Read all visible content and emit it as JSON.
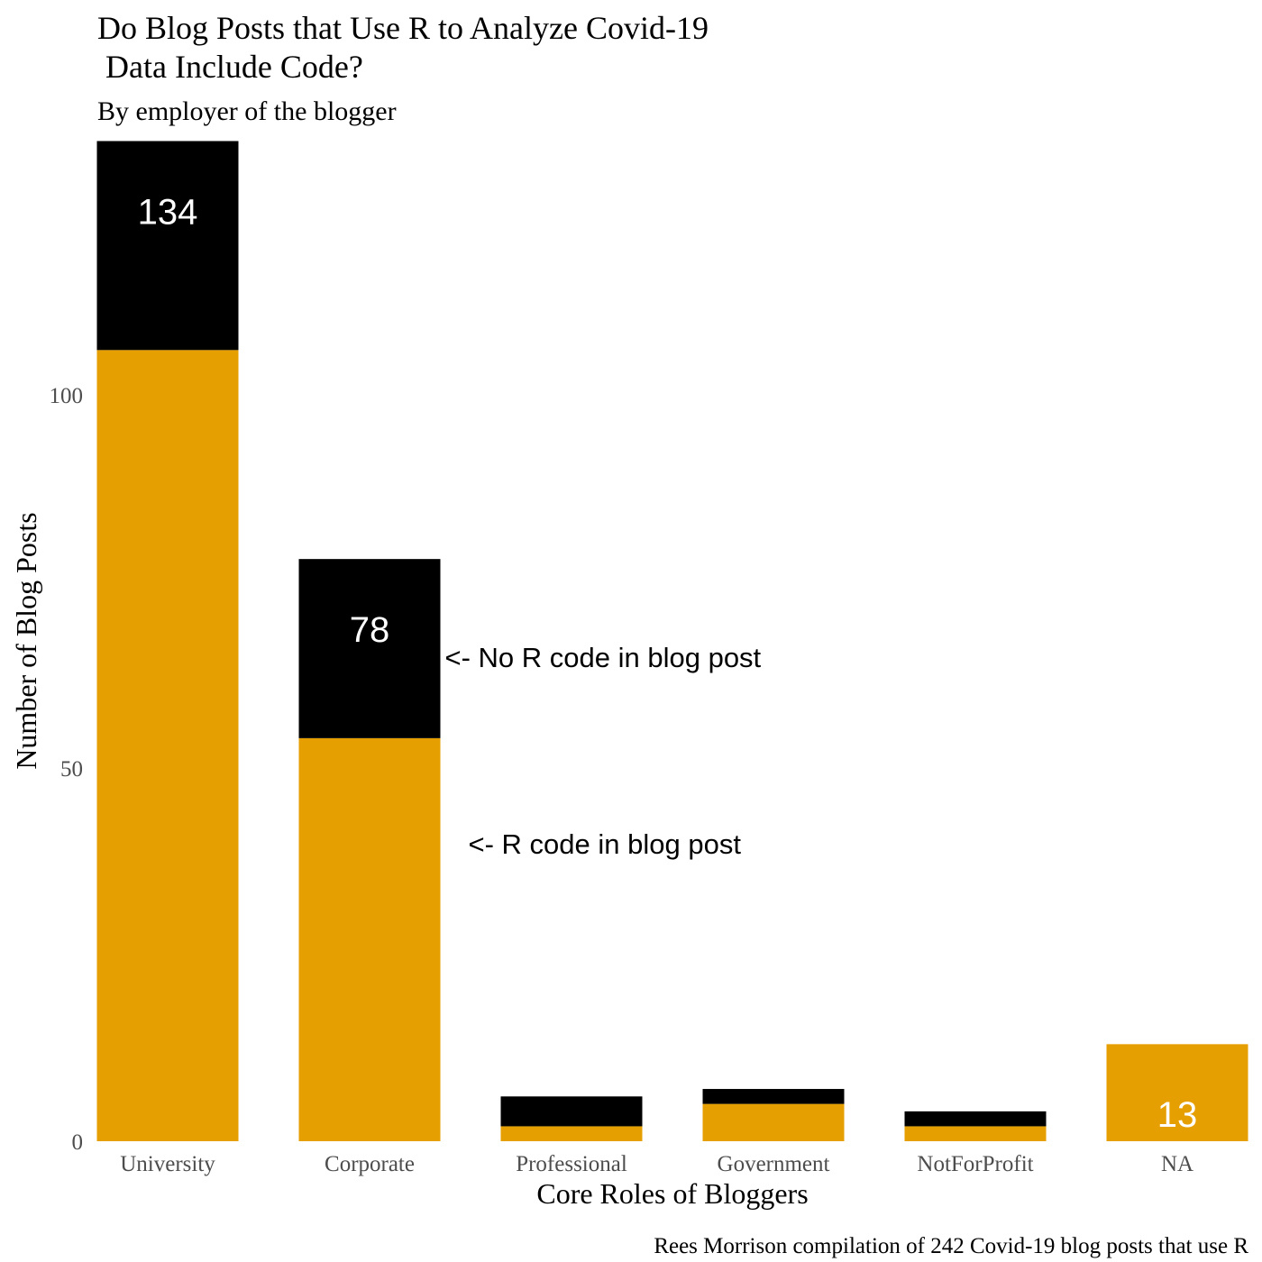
{
  "chart_data": {
    "type": "bar",
    "stacked": true,
    "title": "Do Blog Posts that Use R to Analyze Covid-19\n Data Include Code?",
    "subtitle": "By employer of the blogger",
    "xlabel": "Core Roles of Bloggers",
    "ylabel": "Number of Blog Posts",
    "caption": "Rees Morrison compilation of 242 Covid-19 blog posts that use R",
    "categories": [
      "University",
      "Corporate",
      "Professional",
      "Government",
      "NotForProfit",
      "NA"
    ],
    "series": [
      {
        "values": [
          106,
          54,
          2,
          5,
          2,
          13
        ],
        "color": "#E69F00"
      },
      {
        "values": [
          28,
          24,
          4,
          2,
          2,
          0
        ],
        "color": "#000000"
      }
    ],
    "totals": [
      134,
      78,
      6,
      7,
      4,
      13
    ],
    "data_labels": [
      {
        "category": "University",
        "text": "134",
        "position": "top",
        "color": "#ffffff"
      },
      {
        "category": "Corporate",
        "text": "78",
        "position": "top",
        "color": "#ffffff"
      },
      {
        "category": "NA",
        "text": "13",
        "position": "bottom",
        "color": "#ffffff"
      }
    ],
    "annotations": [
      {
        "text": "<- No R code in blog post",
        "x_after": "Corporate",
        "y": 65
      },
      {
        "text": "<- R code in blog post",
        "x_after": "Corporate",
        "y": 40
      }
    ],
    "yticks": [
      0,
      50,
      100
    ],
    "ylim": [
      0,
      134
    ],
    "grid": false,
    "legend": "none"
  }
}
